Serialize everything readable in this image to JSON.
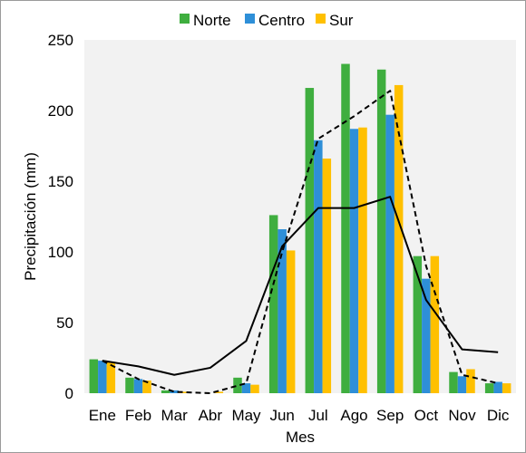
{
  "chart_data": {
    "type": "bar",
    "title": "",
    "xlabel": "Mes",
    "ylabel": "Precipitación (mm)",
    "ylim": [
      0,
      250
    ],
    "yticks": [
      0,
      50,
      100,
      150,
      200,
      250
    ],
    "grid": false,
    "legend_position": "top",
    "plot_background": "#f2f2f2",
    "categories": [
      "Ene",
      "Feb",
      "Mar",
      "Abr",
      "May",
      "Jun",
      "Jul",
      "Ago",
      "Sep",
      "Oct",
      "Nov",
      "Dic"
    ],
    "series": [
      {
        "name": "Norte",
        "kind": "bar",
        "color": "#3fae3f",
        "values": [
          24,
          11,
          2,
          0,
          11,
          126,
          216,
          233,
          229,
          97,
          15,
          7
        ]
      },
      {
        "name": "Centro",
        "kind": "bar",
        "color": "#2e8fd8",
        "values": [
          23,
          10,
          2,
          0,
          7,
          116,
          179,
          187,
          197,
          81,
          12,
          8
        ]
      },
      {
        "name": "Sur",
        "kind": "bar",
        "color": "#ffc000",
        "values": [
          22,
          9,
          1,
          1,
          6,
          101,
          166,
          188,
          218,
          97,
          17,
          7
        ]
      },
      {
        "kind": "line",
        "style": "dashed",
        "color": "#000000",
        "values": [
          23,
          10,
          1,
          0,
          7,
          100,
          180,
          196,
          214,
          90,
          13,
          7
        ]
      },
      {
        "kind": "line",
        "style": "solid",
        "color": "#000000",
        "values": [
          23,
          19,
          13,
          18,
          37,
          104,
          131,
          131,
          139,
          66,
          31,
          29
        ]
      }
    ]
  }
}
